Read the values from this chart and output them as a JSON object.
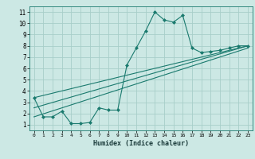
{
  "xlabel": "Humidex (Indice chaleur)",
  "ylabel": "",
  "background_color": "#cce8e4",
  "grid_color": "#a8cec9",
  "line_color": "#1a7a6e",
  "xlim": [
    -0.5,
    23.5
  ],
  "ylim": [
    0.5,
    11.5
  ],
  "xticks": [
    0,
    1,
    2,
    3,
    4,
    5,
    6,
    7,
    8,
    9,
    10,
    11,
    12,
    13,
    14,
    15,
    16,
    17,
    18,
    19,
    20,
    21,
    22,
    23
  ],
  "yticks": [
    1,
    2,
    3,
    4,
    5,
    6,
    7,
    8,
    9,
    10,
    11
  ],
  "series": [
    {
      "x": [
        0,
        1,
        2,
        3,
        4,
        5,
        6,
        7,
        8,
        9,
        10,
        11,
        12,
        13,
        14,
        15,
        16,
        17,
        18,
        19,
        20,
        21,
        22,
        23
      ],
      "y": [
        3.4,
        1.7,
        1.7,
        2.2,
        1.1,
        1.1,
        1.2,
        2.5,
        2.3,
        2.3,
        6.3,
        7.8,
        9.3,
        11.0,
        10.3,
        10.1,
        10.7,
        7.8,
        7.4,
        7.5,
        7.6,
        7.8,
        8.0,
        8.0
      ],
      "marker": "D",
      "markersize": 2.0
    },
    {
      "x": [
        0,
        23
      ],
      "y": [
        3.4,
        8.0
      ],
      "marker": null,
      "markersize": 0
    },
    {
      "x": [
        0,
        23
      ],
      "y": [
        2.5,
        8.0
      ],
      "marker": null,
      "markersize": 0
    },
    {
      "x": [
        0,
        23
      ],
      "y": [
        1.7,
        7.8
      ],
      "marker": null,
      "markersize": 0
    }
  ]
}
